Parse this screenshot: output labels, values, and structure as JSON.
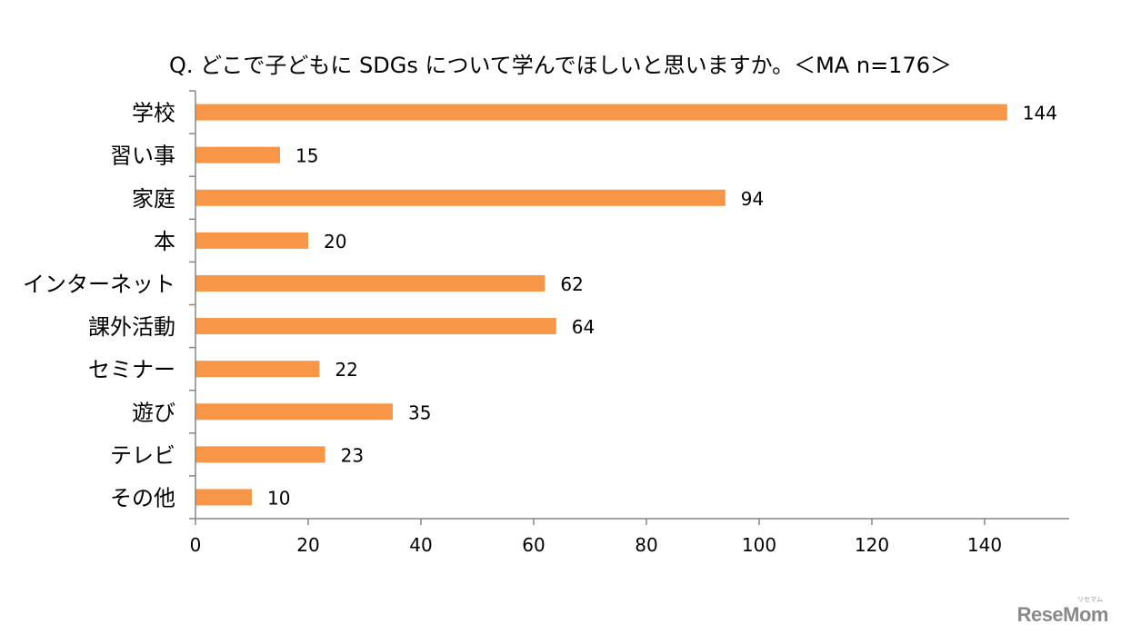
{
  "chart_data": {
    "type": "bar",
    "orientation": "horizontal",
    "title": "Q. どこで子どもに SDGs について学んでほしいと思いますか。＜MA n=176＞",
    "categories": [
      "学校",
      "習い事",
      "家庭",
      "本",
      "インターネット",
      "課外活動",
      "セミナー",
      "遊び",
      "テレビ",
      "その他"
    ],
    "values": [
      144,
      15,
      94,
      20,
      62,
      64,
      22,
      35,
      23,
      10
    ],
    "data_labels": [
      "144",
      "15",
      "94",
      "20",
      "62",
      "64",
      "22",
      "35",
      "23",
      "10"
    ],
    "x_ticks": [
      "0",
      "20",
      "40",
      "60",
      "80",
      "100",
      "120",
      "140"
    ],
    "xlim": [
      0,
      155
    ],
    "xlabel": "",
    "ylabel": "",
    "grid": false,
    "legend": "none",
    "colors": {
      "bar": "#F79646",
      "axis": "#868686",
      "text": "#000000"
    }
  },
  "watermark": {
    "brand": "ReseMom",
    "sub": "リセマム"
  }
}
